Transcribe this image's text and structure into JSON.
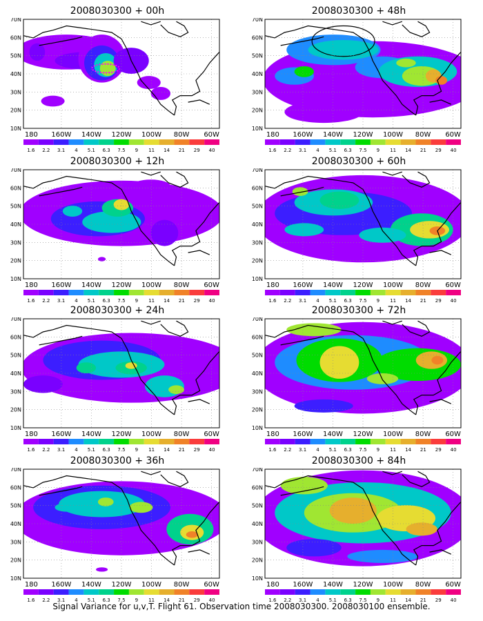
{
  "figure": {
    "caption": "Signal Variance for u,v,T. Flight 61. Observation time 2008030300. 2008030100 ensemble."
  },
  "axes": {
    "lat_labels": [
      "70N",
      "60N",
      "50N",
      "40N",
      "30N",
      "20N",
      "10N"
    ],
    "lon_labels": [
      "180",
      "160W",
      "140W",
      "120W",
      "100W",
      "80W",
      "60W"
    ]
  },
  "colorbar": {
    "levels": [
      "1.6",
      "2.2",
      "3.1",
      "4",
      "5.1",
      "6.3",
      "7.5",
      "9",
      "11",
      "14",
      "21",
      "29",
      "40"
    ],
    "colors": [
      "#a000ff",
      "#7a00ff",
      "#3c1eff",
      "#1e8cff",
      "#00c8c8",
      "#00d28c",
      "#00dc00",
      "#a0e632",
      "#e6dc32",
      "#e6af2d",
      "#f08228",
      "#fa3c3c",
      "#f00082"
    ]
  },
  "panels": [
    {
      "title": "2008030300 + 00h"
    },
    {
      "title": "2008030300 + 48h"
    },
    {
      "title": "2008030300 + 12h"
    },
    {
      "title": "2008030300 + 60h"
    },
    {
      "title": "2008030300 + 24h"
    },
    {
      "title": "2008030300 + 72h"
    },
    {
      "title": "2008030300 + 36h"
    },
    {
      "title": "2008030300 + 84h"
    }
  ]
}
